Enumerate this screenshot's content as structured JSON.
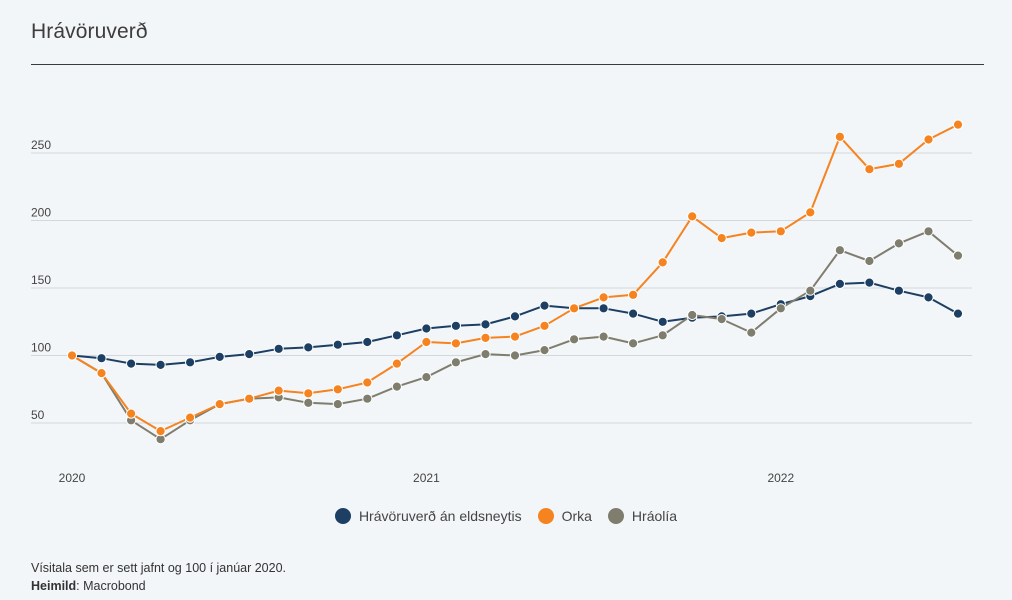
{
  "title": "Hrávöruverð",
  "footnote": {
    "text": "Vísitala sem er sett jafnt og 100 í janúar 2020.",
    "source_label": "Heimild",
    "source_value": ": Macrobond"
  },
  "chart_data": {
    "type": "line",
    "y_ticks": [
      50,
      100,
      150,
      200,
      250
    ],
    "x_ticks": [
      "2020",
      "2021",
      "2022"
    ],
    "ylim": [
      20,
      290
    ],
    "grid": "horizontal",
    "legend_position": "bottom-center",
    "x": [
      "2020-01",
      "2020-02",
      "2020-03",
      "2020-04",
      "2020-05",
      "2020-06",
      "2020-07",
      "2020-08",
      "2020-09",
      "2020-10",
      "2020-11",
      "2020-12",
      "2021-01",
      "2021-02",
      "2021-03",
      "2021-04",
      "2021-05",
      "2021-06",
      "2021-07",
      "2021-08",
      "2021-09",
      "2021-10",
      "2021-11",
      "2021-12",
      "2022-01",
      "2022-02",
      "2022-03",
      "2022-04",
      "2022-05",
      "2022-06",
      "2022-07"
    ],
    "series": [
      {
        "name": "Hrávöruverð án eldsneytis",
        "color": "#1c3f63",
        "values": [
          100,
          98,
          94,
          93,
          95,
          99,
          101,
          105,
          106,
          108,
          110,
          115,
          120,
          122,
          123,
          129,
          137,
          135,
          135,
          131,
          125,
          128,
          129,
          131,
          138,
          144,
          153,
          154,
          148,
          143,
          131
        ]
      },
      {
        "name": "Orka",
        "color": "#f5831f",
        "values": [
          100,
          87,
          57,
          44,
          54,
          64,
          68,
          74,
          72,
          75,
          80,
          94,
          110,
          109,
          113,
          114,
          122,
          135,
          143,
          145,
          169,
          203,
          187,
          191,
          192,
          206,
          262,
          238,
          242,
          260,
          271
        ]
      },
      {
        "name": "Hráolía",
        "color": "#7f7d6e",
        "values": [
          100,
          87,
          52,
          38,
          52,
          64,
          68,
          69,
          65,
          64,
          68,
          77,
          84,
          95,
          101,
          100,
          104,
          112,
          114,
          109,
          115,
          130,
          127,
          117,
          135,
          148,
          178,
          170,
          183,
          192,
          174
        ]
      }
    ]
  }
}
